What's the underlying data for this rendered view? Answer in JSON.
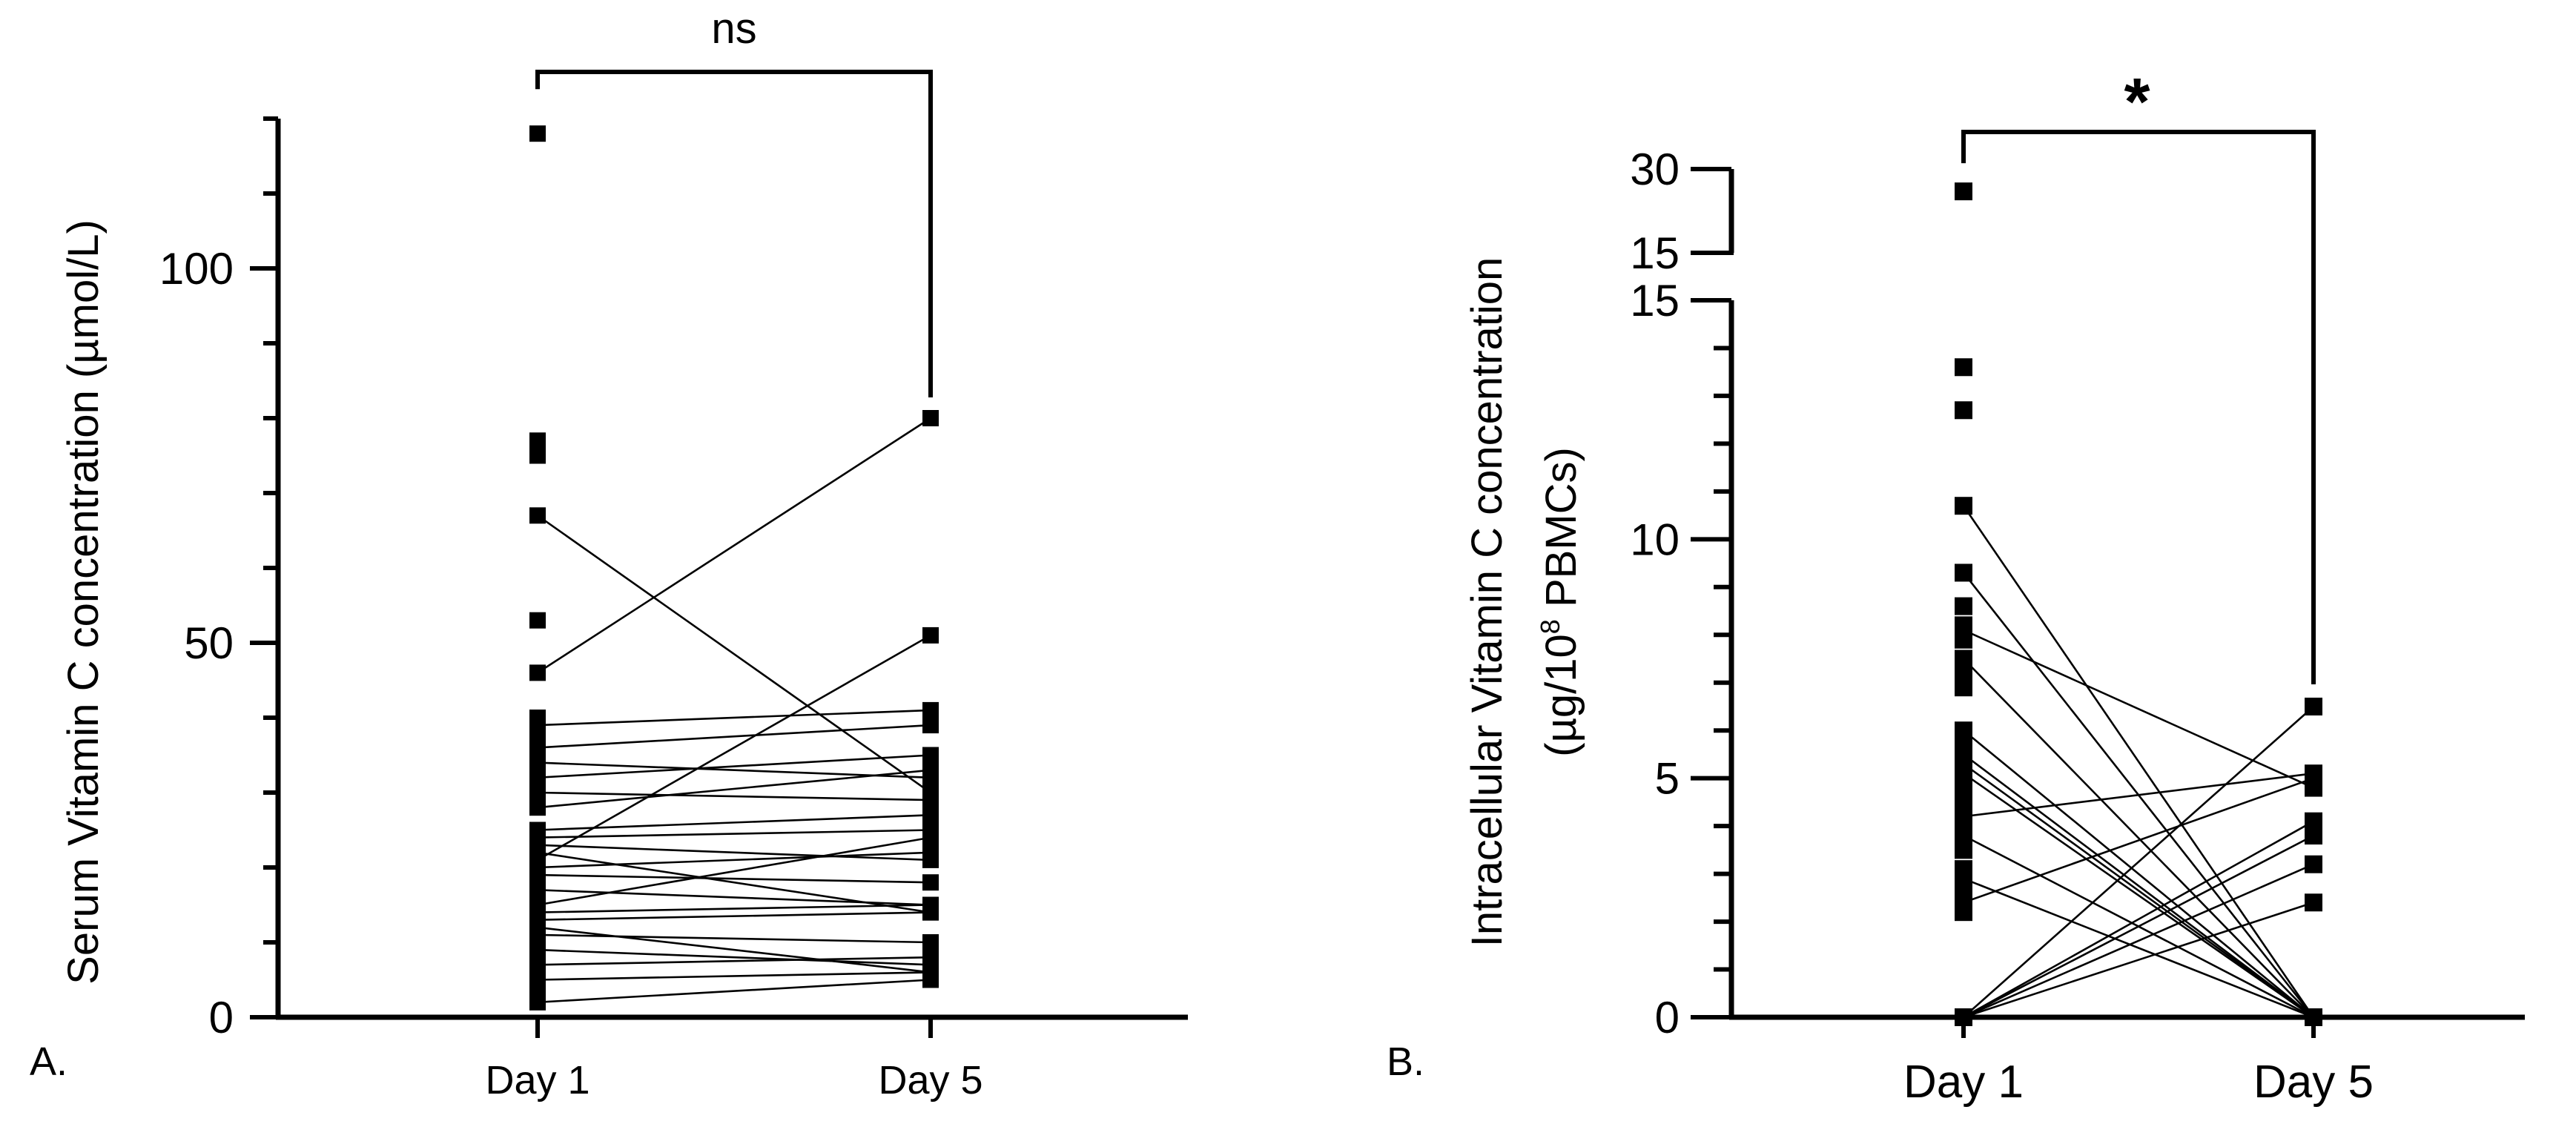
{
  "chart_data": [
    {
      "type": "scatter",
      "panel_label": "A.",
      "ylabel": "Serum Vitamin C concentration (µmol/L)",
      "categories": [
        "Day 1",
        "Day 5"
      ],
      "ylim": [
        0,
        120
      ],
      "yticks": [
        0,
        50,
        100
      ],
      "yticks_minor_step": 10,
      "significance": "ns",
      "day1_only_points": [
        118,
        77,
        75,
        53,
        40,
        38,
        36,
        30,
        6,
        4
      ],
      "pairs": [
        {
          "day1": 67,
          "day5": 30
        },
        {
          "day1": 46,
          "day5": 80
        },
        {
          "day1": 39,
          "day5": 41
        },
        {
          "day1": 36,
          "day5": 39
        },
        {
          "day1": 34,
          "day5": 32
        },
        {
          "day1": 32,
          "day5": 35
        },
        {
          "day1": 30,
          "day5": 29
        },
        {
          "day1": 28,
          "day5": 33
        },
        {
          "day1": 25,
          "day5": 27
        },
        {
          "day1": 24,
          "day5": 25
        },
        {
          "day1": 23,
          "day5": 21
        },
        {
          "day1": 22,
          "day5": 14
        },
        {
          "day1": 21,
          "day5": 51
        },
        {
          "day1": 20,
          "day5": 22
        },
        {
          "day1": 19,
          "day5": 18
        },
        {
          "day1": 17,
          "day5": 15
        },
        {
          "day1": 15,
          "day5": 24
        },
        {
          "day1": 14,
          "day5": 15
        },
        {
          "day1": 13,
          "day5": 14
        },
        {
          "day1": 12,
          "day5": 6
        },
        {
          "day1": 11,
          "day5": 10
        },
        {
          "day1": 9,
          "day5": 7
        },
        {
          "day1": 7,
          "day5": 8
        },
        {
          "day1": 5,
          "day5": 6
        },
        {
          "day1": 2,
          "day5": 5
        }
      ]
    },
    {
      "type": "scatter",
      "panel_label": "B.",
      "ylabel_line1": "Intracellular Vitamin C concentration",
      "ylabel_line2_prefix": "(µg/10",
      "ylabel_line2_sup": "8",
      "ylabel_line2_suffix": " PBMCs)",
      "categories": [
        "Day 1",
        "Day 5"
      ],
      "ylim": [
        0,
        15
      ],
      "yticks": [
        0,
        5,
        10,
        15
      ],
      "yticks_minor_step": 1,
      "broken_axis": {
        "upper_segment_labels": [
          "15",
          "30"
        ],
        "upper_segment_range": [
          15,
          30
        ]
      },
      "significance": "*",
      "day1_only_points": [
        26,
        13.6,
        12.7,
        8.6,
        8.2,
        7.9,
        7.2,
        6.9,
        5.8,
        4.8,
        4.5,
        4.3,
        3.9,
        3.5,
        3.1,
        2.7,
        2.2
      ],
      "pairs": [
        {
          "day1": 10.7,
          "day5": 0
        },
        {
          "day1": 9.3,
          "day5": 0
        },
        {
          "day1": 8.1,
          "day5": 4.8
        },
        {
          "day1": 7.5,
          "day5": 0
        },
        {
          "day1": 6.0,
          "day5": 0
        },
        {
          "day1": 5.5,
          "day5": 0
        },
        {
          "day1": 5.3,
          "day5": 0
        },
        {
          "day1": 5.1,
          "day5": 0
        },
        {
          "day1": 4.2,
          "day5": 5.1
        },
        {
          "day1": 3.8,
          "day5": 0
        },
        {
          "day1": 2.9,
          "day5": 0
        },
        {
          "day1": 2.4,
          "day5": 5.0
        },
        {
          "day1": 0,
          "day5": 6.5
        },
        {
          "day1": 0,
          "day5": 4.1
        },
        {
          "day1": 0,
          "day5": 3.8
        },
        {
          "day1": 0,
          "day5": 3.2
        },
        {
          "day1": 0,
          "day5": 2.4
        }
      ]
    }
  ]
}
